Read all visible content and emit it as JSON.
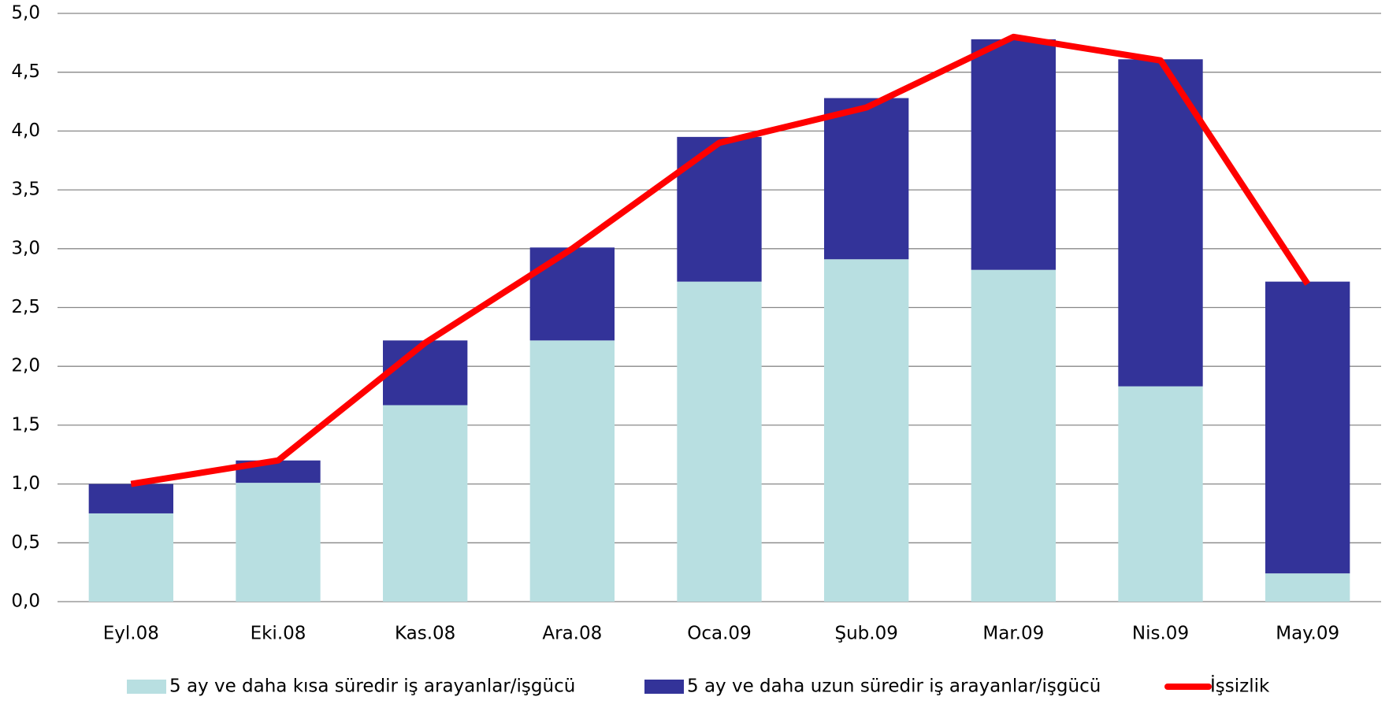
{
  "chart_data": {
    "type": "bar",
    "categories": [
      "Eyl.08",
      "Eki.08",
      "Kas.08",
      "Ara.08",
      "Oca.09",
      "Şub.09",
      "Mar.09",
      "Nis.09",
      "May.09"
    ],
    "series": [
      {
        "name": "5 ay ve daha kısa süredir iş arayanlar/işgücü",
        "color": "#b8dfe1",
        "type": "bar",
        "values": [
          0.75,
          1.01,
          1.67,
          2.22,
          2.72,
          2.91,
          2.82,
          1.83,
          0.24
        ]
      },
      {
        "name": "5 ay ve daha uzun süredir iş arayanlar/işgücü",
        "color": "#333399",
        "type": "bar",
        "values": [
          0.25,
          0.19,
          0.55,
          0.79,
          1.23,
          1.37,
          1.96,
          2.78,
          2.48
        ]
      },
      {
        "name": "İşsizlik",
        "color": "#ff0000",
        "type": "line",
        "values": [
          1.0,
          1.2,
          2.2,
          3.0,
          3.9,
          4.2,
          4.8,
          4.6,
          2.7
        ]
      }
    ],
    "stacked": true,
    "ylim": [
      0,
      5
    ],
    "yticks": [
      {
        "value": 0,
        "label": "0,0"
      },
      {
        "value": 0.5,
        "label": "0,5"
      },
      {
        "value": 1,
        "label": "1,0"
      },
      {
        "value": 1.5,
        "label": "1,5"
      },
      {
        "value": 2,
        "label": "2,0"
      },
      {
        "value": 2.5,
        "label": "2,5"
      },
      {
        "value": 3,
        "label": "3,0"
      },
      {
        "value": 3.5,
        "label": "3,5"
      },
      {
        "value": 4,
        "label": "4,0"
      },
      {
        "value": 4.5,
        "label": "4,5"
      },
      {
        "value": 5,
        "label": "5,0"
      }
    ],
    "grid": true,
    "legend": "bottom"
  }
}
